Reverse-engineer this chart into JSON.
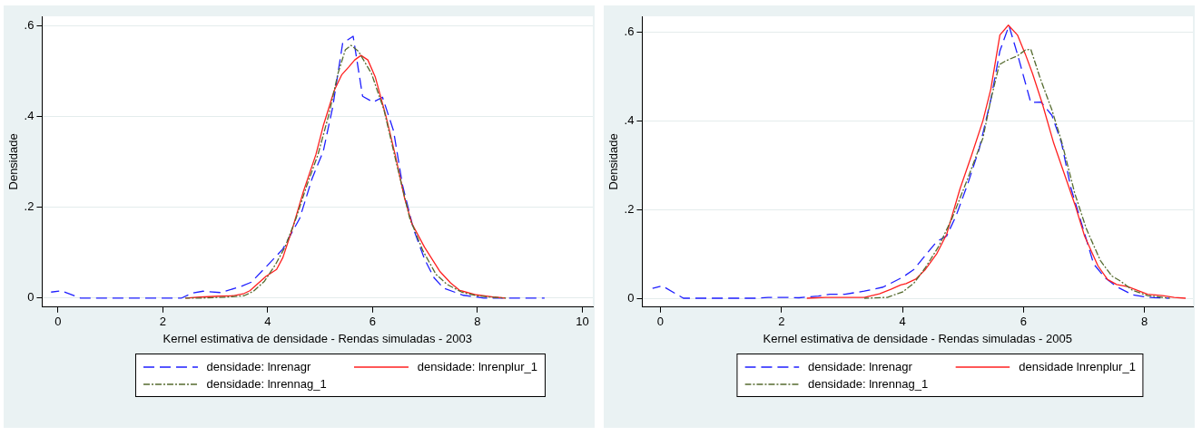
{
  "chart_data": [
    {
      "type": "line",
      "xlabel": "Kernel estimativa de densidade - Rendas simuladas - 2003",
      "ylabel": "Densidade",
      "xlim": [
        -0.3,
        10.2
      ],
      "xticks": [
        0,
        2,
        4,
        6,
        8,
        10
      ],
      "ylim": [
        -0.02,
        0.62
      ],
      "yticks": [
        0,
        {
          "value": 0.2,
          "label": ".2"
        },
        {
          "value": 0.4,
          "label": ".4"
        },
        {
          "value": 0.6,
          "label": ".6"
        }
      ],
      "grid": "y",
      "legend": "bottom",
      "series": [
        {
          "name": "densidade: lnrenagr",
          "color": "#1f1fff",
          "line_style": "dashed",
          "x": [
            -0.13,
            0.06,
            0.43,
            2.36,
            2.57,
            2.77,
            3.1,
            3.48,
            3.69,
            4.08,
            4.29,
            4.61,
            4.85,
            5.06,
            5.24,
            5.43,
            5.63,
            5.81,
            6.01,
            6.19,
            6.4,
            6.57,
            6.78,
            6.99,
            7.17,
            7.35,
            7.73,
            8.12,
            8.54,
            9.28
          ],
          "values": [
            0.013,
            0.016,
            0,
            0,
            0.011,
            0.015,
            0.012,
            0.025,
            0.035,
            0.082,
            0.108,
            0.175,
            0.264,
            0.323,
            0.42,
            0.561,
            0.576,
            0.444,
            0.431,
            0.442,
            0.368,
            0.249,
            0.152,
            0.086,
            0.045,
            0.022,
            0.006,
            0,
            0,
            0
          ]
        },
        {
          "name": "densidade: lnrenplur_1",
          "color": "#ff2020",
          "line_style": "solid",
          "x": [
            2.43,
            2.71,
            3.06,
            3.34,
            3.55,
            3.66,
            3.97,
            4.17,
            4.29,
            4.47,
            4.68,
            4.92,
            5.06,
            5.27,
            5.41,
            5.55,
            5.66,
            5.78,
            5.91,
            6.05,
            6.26,
            6.43,
            6.61,
            6.75,
            6.99,
            7.28,
            7.49,
            7.66,
            7.98,
            8.33,
            8.54
          ],
          "values": [
            0,
            0.002,
            0.004,
            0.005,
            0.01,
            0.016,
            0.048,
            0.063,
            0.089,
            0.152,
            0.234,
            0.316,
            0.379,
            0.457,
            0.491,
            0.509,
            0.524,
            0.534,
            0.524,
            0.487,
            0.398,
            0.316,
            0.22,
            0.164,
            0.112,
            0.059,
            0.033,
            0.017,
            0.007,
            0.002,
            0
          ]
        },
        {
          "name": "densidade: lnrennag_1",
          "color": "#556b2f",
          "line_style": "dashdot",
          "x": [
            2.43,
            2.78,
            3.2,
            3.55,
            3.73,
            3.94,
            4.15,
            4.33,
            4.54,
            4.75,
            4.96,
            5.17,
            5.34,
            5.48,
            5.59,
            5.73,
            5.98,
            6.22,
            6.43,
            6.71,
            6.96,
            7.21,
            7.42,
            7.7,
            7.98,
            8.26,
            8.54
          ],
          "values": [
            0,
            0,
            0.002,
            0.005,
            0.015,
            0.037,
            0.074,
            0.112,
            0.175,
            0.249,
            0.316,
            0.405,
            0.494,
            0.546,
            0.556,
            0.543,
            0.494,
            0.413,
            0.309,
            0.175,
            0.104,
            0.052,
            0.03,
            0.013,
            0.005,
            0.002,
            0
          ]
        }
      ]
    },
    {
      "type": "line",
      "xlabel": "Kernel estimativa de densidade - Rendas simuladas - 2005",
      "ylabel": "Densidade",
      "xlim": [
        -0.3,
        8.8
      ],
      "xticks": [
        0,
        2,
        4,
        6,
        8
      ],
      "ylim": [
        -0.02,
        0.635
      ],
      "yticks": [
        0,
        {
          "value": 0.2,
          "label": ".2"
        },
        {
          "value": 0.4,
          "label": ".4"
        },
        {
          "value": 0.6,
          "label": ".6"
        }
      ],
      "grid": "y",
      "legend": "bottom",
      "series": [
        {
          "name": "densidade: lnrenagr",
          "color": "#1f1fff",
          "line_style": "dashed",
          "x": [
            -0.13,
            0.03,
            0.38,
            1.59,
            1.78,
            2.1,
            2.29,
            2.61,
            2.8,
            3.05,
            3.37,
            3.68,
            4.0,
            4.19,
            4.38,
            4.57,
            4.73,
            4.89,
            5.08,
            5.27,
            5.46,
            5.61,
            5.76,
            5.9,
            6.12,
            6.29,
            6.47,
            6.63,
            6.78,
            6.97,
            7.16,
            7.35,
            7.54,
            7.8,
            8.05,
            8.4
          ],
          "values": [
            0.022,
            0.028,
            0,
            0,
            0.002,
            0.002,
            0.001,
            0.005,
            0.009,
            0.009,
            0.016,
            0.025,
            0.047,
            0.065,
            0.097,
            0.128,
            0.14,
            0.187,
            0.258,
            0.337,
            0.447,
            0.557,
            0.614,
            0.55,
            0.441,
            0.442,
            0.412,
            0.349,
            0.25,
            0.164,
            0.077,
            0.046,
            0.026,
            0.008,
            0.002,
            0
          ]
        },
        {
          "name": "densidade lnrenplur_1",
          "color": "#ff2020",
          "line_style": "solid",
          "x": [
            2.42,
            2.73,
            3.05,
            3.37,
            3.62,
            3.81,
            3.97,
            4.06,
            4.22,
            4.38,
            4.57,
            4.73,
            4.95,
            5.14,
            5.33,
            5.46,
            5.61,
            5.75,
            5.9,
            6.03,
            6.15,
            6.31,
            6.5,
            6.69,
            6.85,
            7.01,
            7.23,
            7.39,
            7.54,
            7.73,
            8.05,
            8.3,
            8.49,
            8.68
          ],
          "values": [
            0,
            0.002,
            0.002,
            0.002,
            0.01,
            0.02,
            0.03,
            0.033,
            0.043,
            0.065,
            0.101,
            0.144,
            0.246,
            0.321,
            0.4,
            0.471,
            0.593,
            0.615,
            0.593,
            0.55,
            0.506,
            0.439,
            0.349,
            0.274,
            0.211,
            0.14,
            0.073,
            0.042,
            0.031,
            0.026,
            0.009,
            0.006,
            0.002,
            0
          ]
        },
        {
          "name": "densidade: lnrennag_1",
          "color": "#556b2f",
          "line_style": "dashdot",
          "x": [
            3.37,
            3.75,
            4.0,
            4.19,
            4.38,
            4.6,
            4.82,
            5.08,
            5.33,
            5.46,
            5.6,
            5.71,
            5.9,
            6.03,
            6.12,
            6.28,
            6.47,
            6.63,
            6.85,
            7.04,
            7.27,
            7.46,
            7.61,
            7.8,
            8.05,
            8.3,
            8.42
          ],
          "values": [
            0,
            0.002,
            0.014,
            0.034,
            0.069,
            0.117,
            0.18,
            0.27,
            0.361,
            0.447,
            0.526,
            0.535,
            0.546,
            0.559,
            0.561,
            0.494,
            0.424,
            0.353,
            0.235,
            0.156,
            0.085,
            0.05,
            0.038,
            0.018,
            0.006,
            0.002,
            0
          ]
        }
      ]
    }
  ]
}
